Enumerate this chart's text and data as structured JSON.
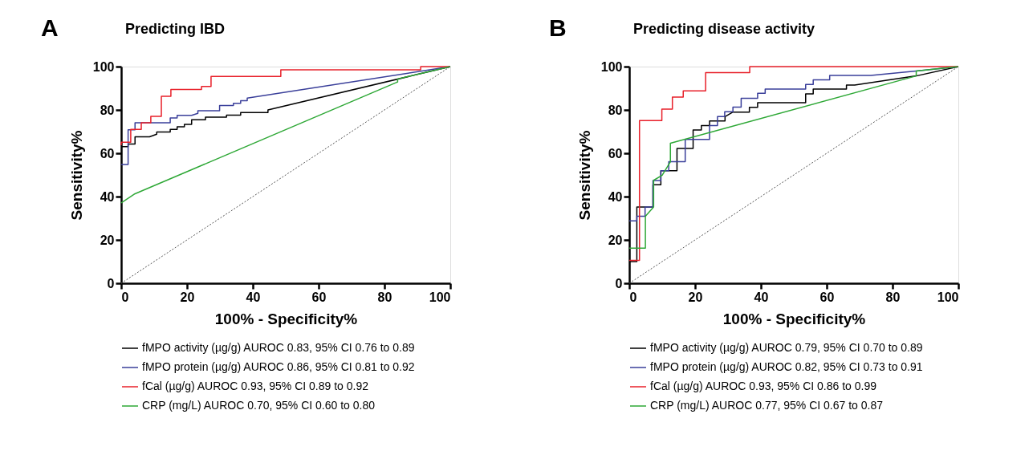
{
  "chart_data": [
    {
      "type": "line",
      "title": "Predicting IBD",
      "annotations": [
        "A"
      ],
      "xlabel": "100% - Specificity%",
      "ylabel": "Sensitivity%",
      "xlim": [
        0,
        100
      ],
      "ylim": [
        0,
        100
      ],
      "xticks": [
        0,
        20,
        40,
        60,
        80,
        100
      ],
      "yticks": [
        0,
        20,
        40,
        60,
        80,
        100
      ],
      "grid": false,
      "legend": "bottom",
      "marker": "none",
      "line_style": "solid",
      "series": [
        {
          "name": "fMPO activity (µg/g) AUROC 0.83, 95% CI 0.76 to 0.89",
          "color": "#000000",
          "x": [
            0,
            2.1,
            2.1,
            4.2,
            4.2,
            8.6,
            10.8,
            10.8,
            14.9,
            14.9,
            17.0,
            17.0,
            19.2,
            19.2,
            21.4,
            21.4,
            25.6,
            25.6,
            32.0,
            32.0,
            36.3,
            36.3,
            44.6,
            44.6,
            100
          ],
          "values": [
            63.1,
            63.1,
            64.3,
            64.3,
            67.6,
            67.6,
            68.8,
            69.8,
            69.8,
            71.0,
            71.0,
            72.2,
            72.2,
            73.3,
            73.3,
            75.5,
            75.5,
            76.7,
            76.7,
            77.6,
            77.6,
            78.8,
            78.8,
            80.0,
            100
          ]
        },
        {
          "name": "fMPO protein (µg/g) AUROC 0.86, 95% CI 0.81 to 0.92",
          "color": "#3a3f9a",
          "x": [
            0,
            2.1,
            2.1,
            4.2,
            4.2,
            14.9,
            14.9,
            17.0,
            17.0,
            21.4,
            23.3,
            23.3,
            29.9,
            29.9,
            34.1,
            34.1,
            36.3,
            36.3,
            38.3,
            38.3,
            100
          ],
          "values": [
            54.8,
            54.8,
            70.8,
            70.8,
            74.1,
            74.1,
            76.3,
            76.3,
            77.5,
            77.5,
            78.4,
            79.6,
            79.6,
            82.0,
            82.0,
            83.1,
            83.1,
            84.3,
            84.3,
            85.5,
            100
          ]
        },
        {
          "name": "fCal (µg/g) AUROC 0.93, 95% CI 0.89 to 0.92",
          "color": "#e8202a",
          "x": [
            0,
            0,
            2.9,
            2.9,
            6.1,
            6.1,
            9.0,
            9.0,
            12.2,
            12.2,
            15.1,
            15.1,
            24.4,
            24.4,
            27.3,
            27.3,
            48.5,
            48.5,
            91.0,
            91.0,
            100
          ],
          "values": [
            63.7,
            65.1,
            65.1,
            71.0,
            71.0,
            74.1,
            74.1,
            77.0,
            77.0,
            86.3,
            86.3,
            89.4,
            89.4,
            90.8,
            90.8,
            95.5,
            95.5,
            98.5,
            98.5,
            100,
            100
          ]
        },
        {
          "name": "CRP (mg/L) AUROC 0.70, 95% CI 0.60 to 0.80",
          "color": "#2ea836",
          "x": [
            0,
            4.2,
            84.0,
            84.0,
            100
          ],
          "values": [
            37.1,
            41.3,
            92.9,
            94.3,
            100
          ]
        },
        {
          "color": "#555555",
          "line_style": "dotted",
          "x": [
            0,
            100
          ],
          "values": [
            0,
            100
          ]
        }
      ]
    },
    {
      "type": "line",
      "title": "Predicting disease activity",
      "annotations": [
        "B"
      ],
      "xlabel": "100% - Specificity%",
      "ylabel": "Sensitivity%",
      "xlim": [
        0,
        100
      ],
      "ylim": [
        0,
        100
      ],
      "xticks": [
        0,
        20,
        40,
        60,
        80,
        100
      ],
      "yticks": [
        0,
        20,
        40,
        60,
        80,
        100
      ],
      "grid": false,
      "legend": "bottom",
      "marker": "none",
      "line_style": "solid",
      "series": [
        {
          "name": "fMPO activity (µg/g) AUROC 0.79, 95% CI 0.70 to 0.89",
          "color": "#000000",
          "x": [
            0,
            2.3,
            2.3,
            7.2,
            7.2,
            9.6,
            9.6,
            14.5,
            14.5,
            19.4,
            19.4,
            21.9,
            21.9,
            24.4,
            24.4,
            29.1,
            29.1,
            31.5,
            36.5,
            36.5,
            39.0,
            39.0,
            53.6,
            53.6,
            55.9,
            55.9,
            66.0,
            66.0,
            68.5,
            87.2,
            100
          ],
          "values": [
            10.0,
            10.0,
            35.2,
            35.2,
            45.5,
            45.5,
            51.9,
            51.9,
            62.2,
            62.2,
            70.7,
            70.7,
            72.8,
            72.8,
            74.9,
            74.9,
            76.9,
            79.0,
            79.0,
            81.2,
            81.2,
            83.3,
            83.3,
            87.4,
            87.4,
            89.6,
            89.6,
            91.5,
            91.5,
            95.7,
            100
          ]
        },
        {
          "name": "fMPO protein (µg/g) AUROC 0.82, 95% CI 0.73 to 0.91",
          "color": "#3a3f9a",
          "x": [
            0,
            2.3,
            2.3,
            4.8,
            4.8,
            7.2,
            7.2,
            9.6,
            9.6,
            12.0,
            12.0,
            17.0,
            17.0,
            24.4,
            24.4,
            26.8,
            26.8,
            29.0,
            29.0,
            31.5,
            31.5,
            34.0,
            34.0,
            39.0,
            39.0,
            41.3,
            41.3,
            53.6,
            53.6,
            55.9,
            55.9,
            60.9,
            60.9,
            73.4,
            87.2,
            100
          ],
          "values": [
            28.8,
            28.8,
            30.9,
            30.9,
            35.2,
            35.2,
            47.4,
            47.4,
            51.9,
            51.9,
            56.1,
            56.1,
            66.4,
            66.4,
            72.8,
            72.8,
            76.9,
            76.9,
            79.2,
            79.2,
            81.3,
            81.3,
            85.4,
            85.4,
            87.7,
            87.7,
            89.6,
            89.6,
            91.8,
            91.8,
            93.9,
            93.9,
            95.9,
            95.9,
            98.0,
            100
          ]
        },
        {
          "name": "fCal (µg/g) AUROC 0.93, 95% CI 0.86 to 0.99",
          "color": "#e8202a",
          "x": [
            0,
            3.1,
            3.1,
            9.9,
            9.9,
            13.1,
            13.1,
            16.4,
            16.4,
            23.2,
            23.2,
            36.6,
            36.6,
            100
          ],
          "values": [
            10.6,
            10.6,
            75.1,
            75.1,
            80.4,
            80.4,
            85.9,
            85.9,
            88.8,
            88.8,
            97.2,
            97.2,
            100,
            100
          ]
        },
        {
          "name": "CRP (mg/L) AUROC 0.77, 95% CI 0.67 to 0.87",
          "color": "#2ea836",
          "x": [
            0,
            4.9,
            4.9,
            7.4,
            7.4,
            10.0,
            12.5,
            12.5,
            87.2,
            87.2,
            100
          ],
          "values": [
            16.2,
            16.2,
            30.9,
            35.2,
            47.5,
            49.9,
            56.1,
            64.6,
            95.7,
            98.0,
            100
          ]
        },
        {
          "color": "#555555",
          "line_style": "dotted",
          "x": [
            0,
            100
          ],
          "values": [
            0,
            100
          ]
        }
      ]
    }
  ]
}
